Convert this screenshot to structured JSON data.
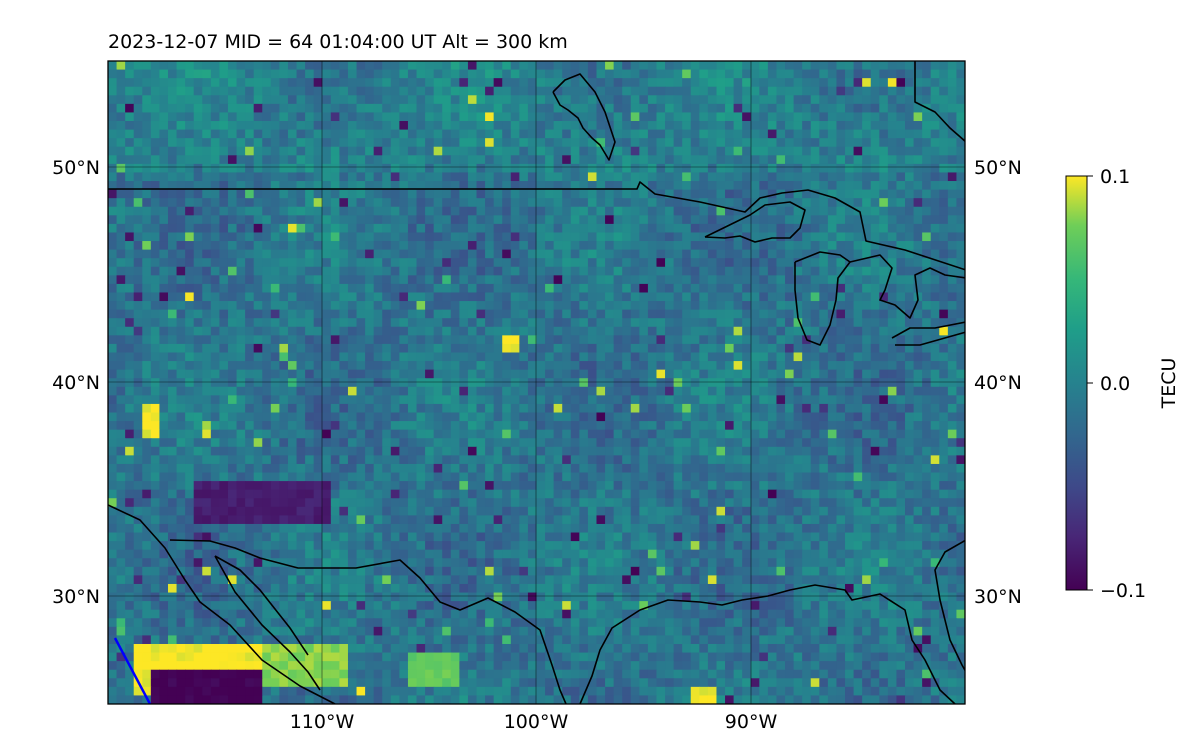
{
  "title": "2023-12-07  MID =  64    01:04:00  UT  Alt = 300 km",
  "chart_data": {
    "type": "heatmap",
    "title": "2023-12-07  MID =  64    01:04:00  UT  Alt = 300 km",
    "map_projection": "equirectangular",
    "lon_range": [
      -120,
      -80
    ],
    "lat_range": [
      25,
      55
    ],
    "lat_ticks": [
      {
        "value": 30,
        "label": "30°N"
      },
      {
        "value": 40,
        "label": "40°N"
      },
      {
        "value": 50,
        "label": "50°N"
      }
    ],
    "lon_ticks": [
      {
        "value": -110,
        "label": "110°W"
      },
      {
        "value": -100,
        "label": "100°W"
      },
      {
        "value": -90,
        "label": "90°W"
      }
    ],
    "grid": true,
    "colormap": "viridis",
    "colorbar": {
      "label": "TECU",
      "min": -0.1,
      "max": 0.1,
      "ticks": [
        {
          "value": 0.1,
          "label": "0.1"
        },
        {
          "value": 0.0,
          "label": "0.0"
        },
        {
          "value": -0.1,
          "label": "−0.1"
        }
      ]
    },
    "field_note": "Differential TEC mostly near 0 to -0.03 TECU with scattered positive/negative speckles",
    "features": [
      {
        "type": "strong_positive_patch",
        "lon": [
          -119,
          -113
        ],
        "lat": [
          25.5,
          28
        ],
        "value": 0.1
      },
      {
        "type": "strong_positive_patch",
        "lon": [
          -113,
          -109
        ],
        "lat": [
          26,
          28
        ],
        "value": 0.08
      },
      {
        "type": "strong_negative_patch",
        "lon": [
          -118,
          -113
        ],
        "lat": [
          25,
          26.8
        ],
        "value": -0.1
      },
      {
        "type": "positive_spot",
        "lon": [
          -106,
          -104
        ],
        "lat": [
          26,
          27.5
        ],
        "value": 0.07
      },
      {
        "type": "positive_spot",
        "lon": [
          -93,
          -92
        ],
        "lat": [
          25,
          25.8
        ],
        "value": 0.1
      },
      {
        "type": "positive_spot",
        "lon": [
          -101.8,
          -101
        ],
        "lat": [
          41.6,
          42.2
        ],
        "value": 0.1
      },
      {
        "type": "positive_spot",
        "lon": [
          -118.6,
          -117.8
        ],
        "lat": [
          37.8,
          39.2
        ],
        "value": 0.1
      },
      {
        "type": "negative_cluster",
        "lon": [
          -116,
          -110
        ],
        "lat": [
          33.5,
          35.5
        ],
        "value": -0.08
      }
    ],
    "overlays": [
      "coastlines",
      "country_borders",
      "great_lakes",
      "satellite_track"
    ],
    "overlay_colors": {
      "borders": "#000000",
      "track": "#0000ff"
    }
  }
}
